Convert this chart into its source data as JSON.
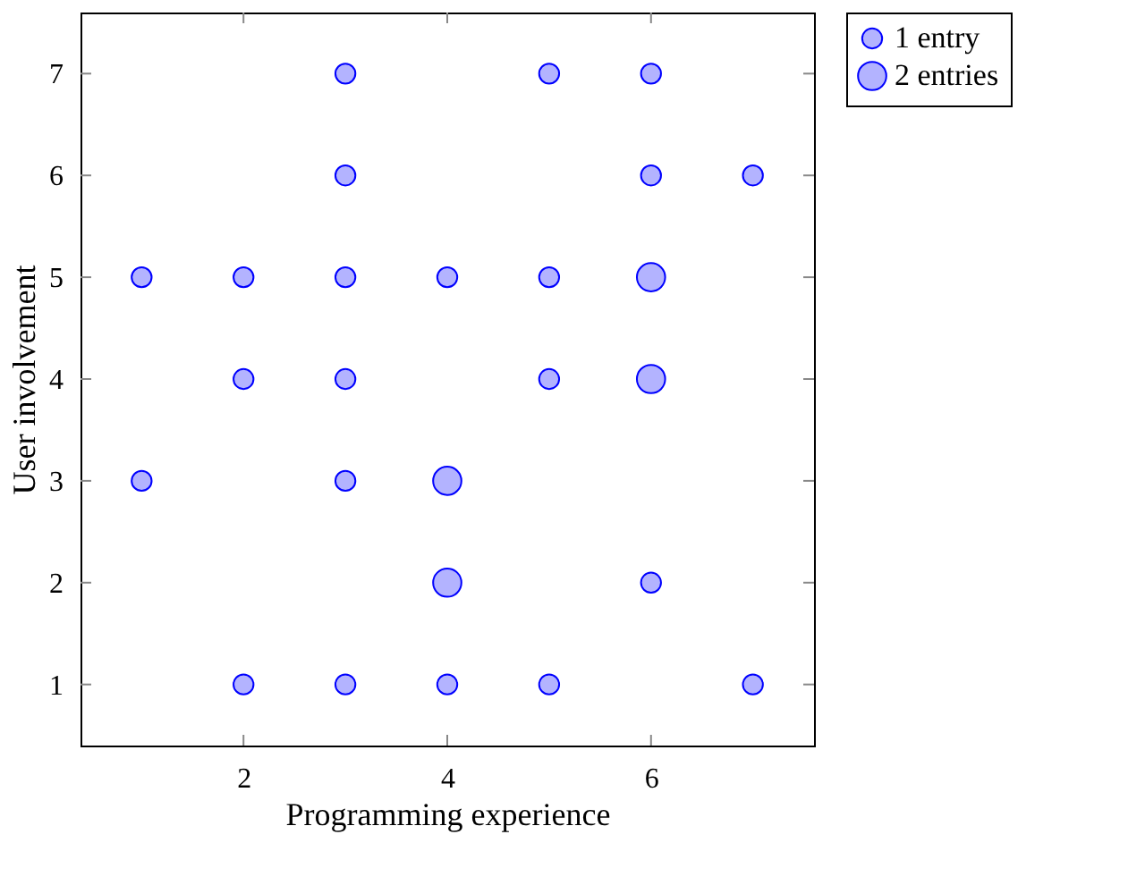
{
  "chart_data": {
    "type": "scatter",
    "xlabel": "Programming experience",
    "ylabel": "User involvement",
    "xlim": [
      0.4,
      7.6
    ],
    "xticks": [
      2,
      4,
      6
    ],
    "ylim": [
      0.4,
      7.6
    ],
    "yticks": [
      1,
      2,
      3,
      4,
      5,
      6,
      7
    ],
    "grid": false,
    "legend": "right",
    "marker": "circle",
    "series": [
      {
        "name": "1 entry",
        "color": "#b3b3ff",
        "x": [
          3,
          5,
          6,
          3,
          6,
          7,
          1,
          2,
          3,
          4,
          5,
          2,
          3,
          5,
          1,
          3,
          6,
          2,
          3,
          4,
          5,
          7
        ],
        "values": [
          7,
          7,
          7,
          6,
          6,
          6,
          5,
          5,
          5,
          5,
          5,
          4,
          4,
          4,
          3,
          3,
          2,
          1,
          1,
          1,
          1,
          1
        ]
      },
      {
        "name": "2 entries",
        "color": "#b3b3ff",
        "x": [
          6,
          6,
          4,
          4
        ],
        "values": [
          5,
          4,
          3,
          2
        ]
      }
    ]
  }
}
